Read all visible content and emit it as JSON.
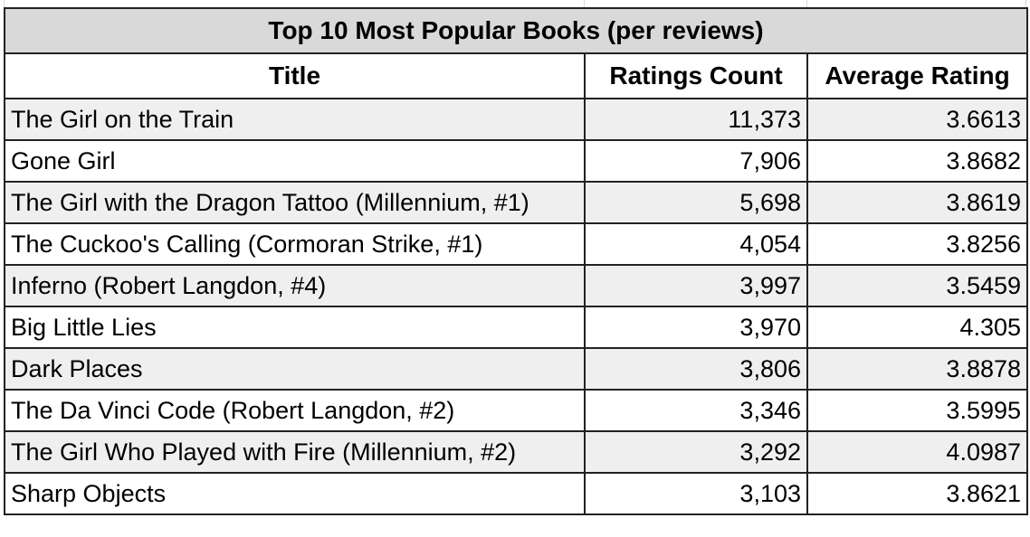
{
  "table": {
    "caption": "Top 10 Most Popular Books (per reviews)",
    "headers": [
      "Title",
      "Ratings Count",
      "Average Rating"
    ],
    "rows": [
      {
        "title": "The Girl on the Train",
        "ratings_count": "11,373",
        "average_rating": "3.6613"
      },
      {
        "title": "Gone Girl",
        "ratings_count": "7,906",
        "average_rating": "3.8682"
      },
      {
        "title": "The Girl with the Dragon Tattoo (Millennium, #1)",
        "ratings_count": "5,698",
        "average_rating": "3.8619"
      },
      {
        "title": "The Cuckoo's Calling (Cormoran Strike, #1)",
        "ratings_count": "4,054",
        "average_rating": "3.8256"
      },
      {
        "title": "Inferno (Robert Langdon, #4)",
        "ratings_count": "3,997",
        "average_rating": "3.5459"
      },
      {
        "title": "Big Little Lies",
        "ratings_count": "3,970",
        "average_rating": "4.305"
      },
      {
        "title": "Dark Places",
        "ratings_count": "3,806",
        "average_rating": "3.8878"
      },
      {
        "title": "The Da Vinci Code (Robert Langdon, #2)",
        "ratings_count": "3,346",
        "average_rating": "3.5995"
      },
      {
        "title": "The Girl Who Played with Fire (Millennium, #2)",
        "ratings_count": "3,292",
        "average_rating": "4.0987"
      },
      {
        "title": "Sharp Objects",
        "ratings_count": "3,103",
        "average_rating": "3.8621"
      }
    ]
  },
  "colors": {
    "title_band": "#d9d9d9",
    "row_shade": "#efefef",
    "border": "#222222"
  }
}
